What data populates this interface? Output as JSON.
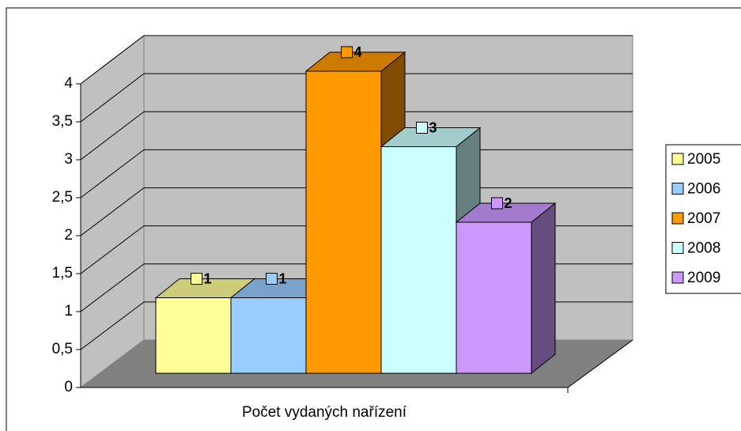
{
  "chart_data": {
    "type": "bar3d",
    "categories": [
      "Počet vydaných nařízení"
    ],
    "series": [
      {
        "name": "2005",
        "color": "#ffff99",
        "values": [
          1
        ]
      },
      {
        "name": "2006",
        "color": "#99ccff",
        "values": [
          1
        ]
      },
      {
        "name": "2007",
        "color": "#ff9900",
        "values": [
          4
        ]
      },
      {
        "name": "2008",
        "color": "#ccffff",
        "values": [
          3
        ]
      },
      {
        "name": "2009",
        "color": "#cc99ff",
        "values": [
          2
        ]
      }
    ],
    "ylim": [
      0,
      4
    ],
    "yticks": [
      0,
      {
        "value": 0.5,
        "label": "0,5"
      },
      1,
      {
        "value": 1.5,
        "label": "1,5"
      },
      2,
      {
        "value": 2.5,
        "label": "2,5"
      },
      3,
      {
        "value": 3.5,
        "label": "3,5"
      },
      4
    ],
    "grid": true,
    "legend": "right"
  }
}
